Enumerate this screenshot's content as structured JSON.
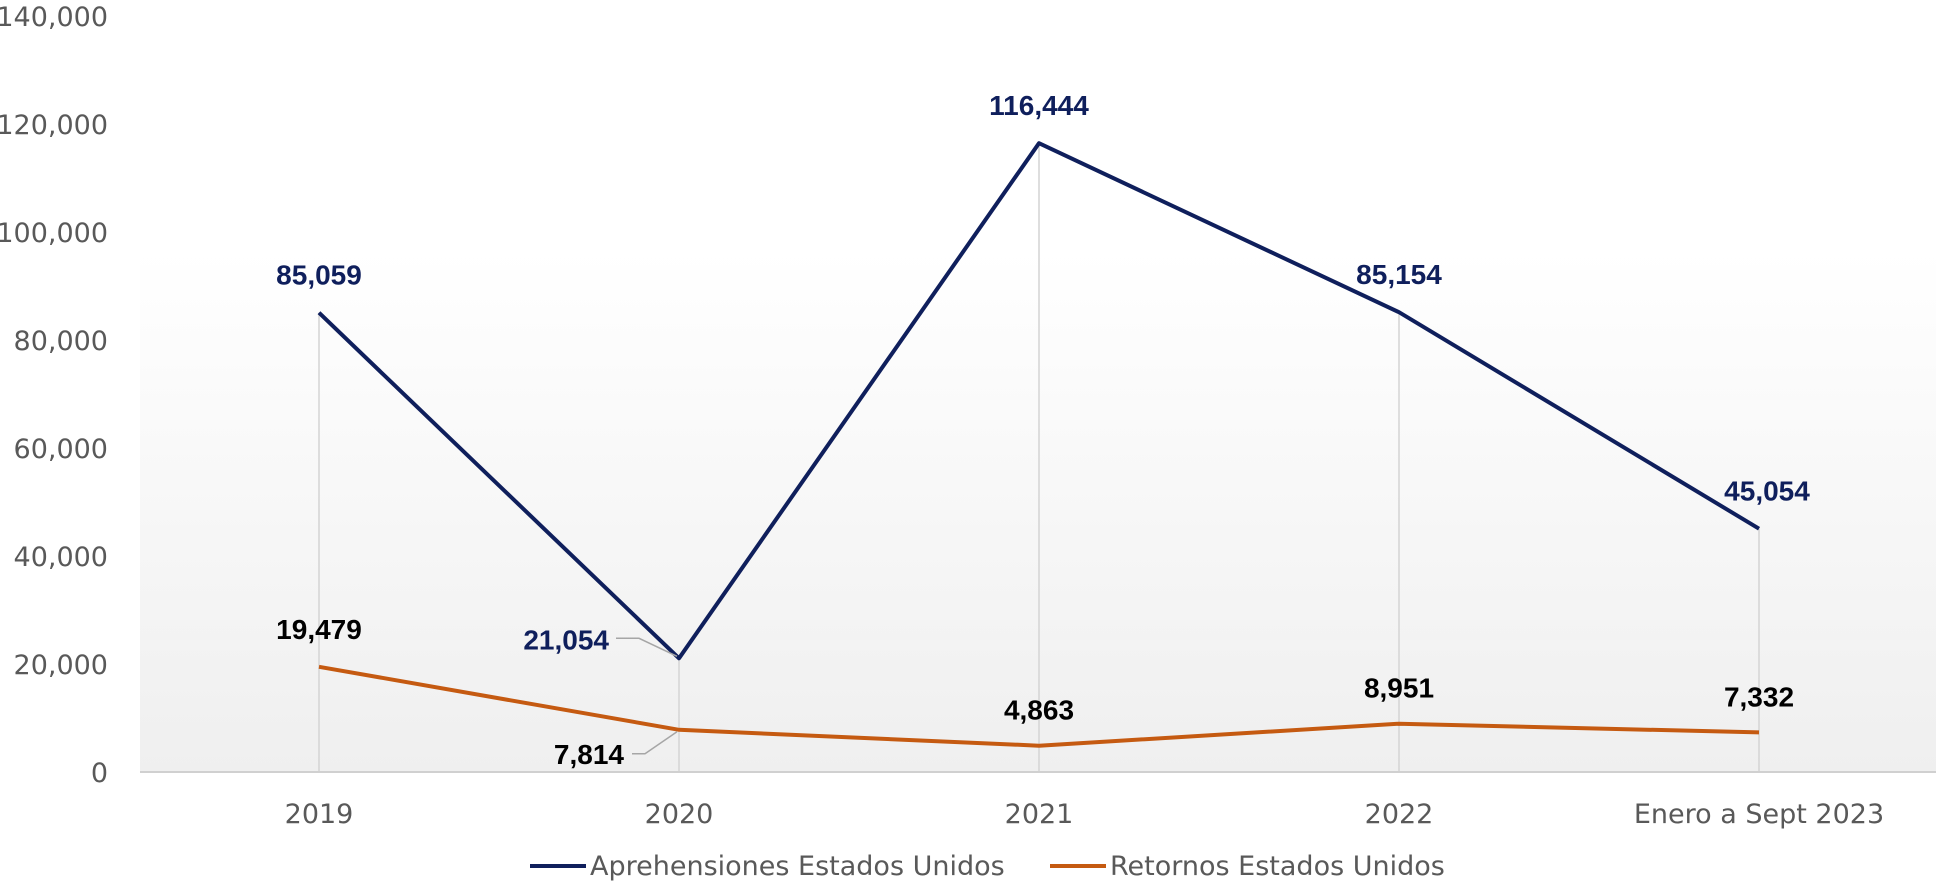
{
  "chart_data": {
    "type": "line",
    "title": "",
    "xlabel": "",
    "ylabel": "",
    "categories": [
      "2019",
      "2020",
      "2021",
      "2022",
      "Enero a Sept 2023"
    ],
    "ylim": [
      0,
      140000
    ],
    "yticks": [
      0,
      20000,
      40000,
      60000,
      80000,
      100000,
      120000,
      140000
    ],
    "ytick_labels": [
      "0",
      "20,000",
      "40,000",
      "60,000",
      "80,000",
      "100,000",
      "120,000",
      "140,000"
    ],
    "grid": false,
    "drop_lines": true,
    "legend_position": "bottom",
    "series": [
      {
        "name": "Aprehensiones Estados Unidos",
        "color": "#0f1f5c",
        "label_color": "#0f1f5c",
        "values": [
          85059,
          21054,
          116444,
          85154,
          45054
        ],
        "labels": [
          "85,059",
          "21,054",
          "116,444",
          "85,154",
          "45,054"
        ]
      },
      {
        "name": "Retornos Estados Unidos",
        "color": "#c55a11",
        "label_color": "#000000",
        "values": [
          19479,
          7814,
          4863,
          8951,
          7332
        ],
        "labels": [
          "19,479",
          "7,814",
          "4,863",
          "8,951",
          "7,332"
        ]
      }
    ]
  }
}
